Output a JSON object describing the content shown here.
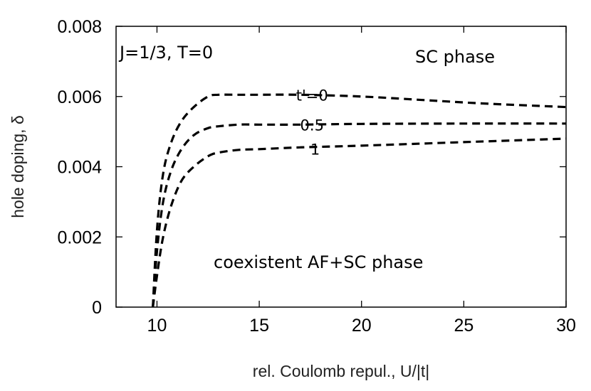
{
  "chart_data": {
    "type": "line",
    "xlabel": "rel. Coulomb repul., U/|t|",
    "ylabel": "hole doping, δ",
    "xlim": [
      8,
      30
    ],
    "ylim": [
      0,
      0.008
    ],
    "xticks": [
      10,
      15,
      20,
      25,
      30
    ],
    "yticks": [
      0,
      0.002,
      0.004,
      0.006,
      0.008
    ],
    "xtick_labels": [
      "10",
      "15",
      "20",
      "25",
      "30"
    ],
    "ytick_labels": [
      "0",
      "0.002",
      "0.004",
      "0.006",
      "0.008"
    ],
    "grid": false,
    "line_style": "dashed",
    "line_color": "#000000",
    "annotations": {
      "params": "J=1/3, T=0",
      "sc_region": "SC phase",
      "coexistent_region": "coexistent AF+SC phase"
    },
    "series": [
      {
        "name": "t'=0",
        "x": [
          9.8,
          10.0,
          10.3,
          10.7,
          11.2,
          11.8,
          12.5,
          13.0,
          14.0,
          15.0,
          17.0,
          20.0,
          23.0,
          26.0,
          30.0
        ],
        "y": [
          0.0,
          0.0022,
          0.0038,
          0.0047,
          0.0053,
          0.0057,
          0.006,
          0.00605,
          0.00605,
          0.00605,
          0.00605,
          0.006,
          0.0059,
          0.0058,
          0.0057
        ]
      },
      {
        "name": "0.5",
        "x": [
          9.8,
          10.0,
          10.3,
          10.7,
          11.2,
          11.8,
          12.5,
          13.0,
          14.0,
          15.0,
          17.0,
          20.0,
          25.0,
          30.0
        ],
        "y": [
          0.0,
          0.0016,
          0.003,
          0.0039,
          0.0045,
          0.0049,
          0.0051,
          0.00515,
          0.0052,
          0.0052,
          0.0052,
          0.00522,
          0.00523,
          0.00523
        ]
      },
      {
        "name": "1",
        "x": [
          9.8,
          10.0,
          10.3,
          10.7,
          11.2,
          11.8,
          12.5,
          13.0,
          14.0,
          15.0,
          17.0,
          20.0,
          25.0,
          30.0
        ],
        "y": [
          0.0,
          0.0009,
          0.002,
          0.0029,
          0.0036,
          0.004,
          0.0043,
          0.0044,
          0.00448,
          0.0045,
          0.00455,
          0.0046,
          0.0047,
          0.0048
        ]
      }
    ],
    "curve_labels": [
      "t'=0",
      "0.5",
      "1"
    ]
  }
}
